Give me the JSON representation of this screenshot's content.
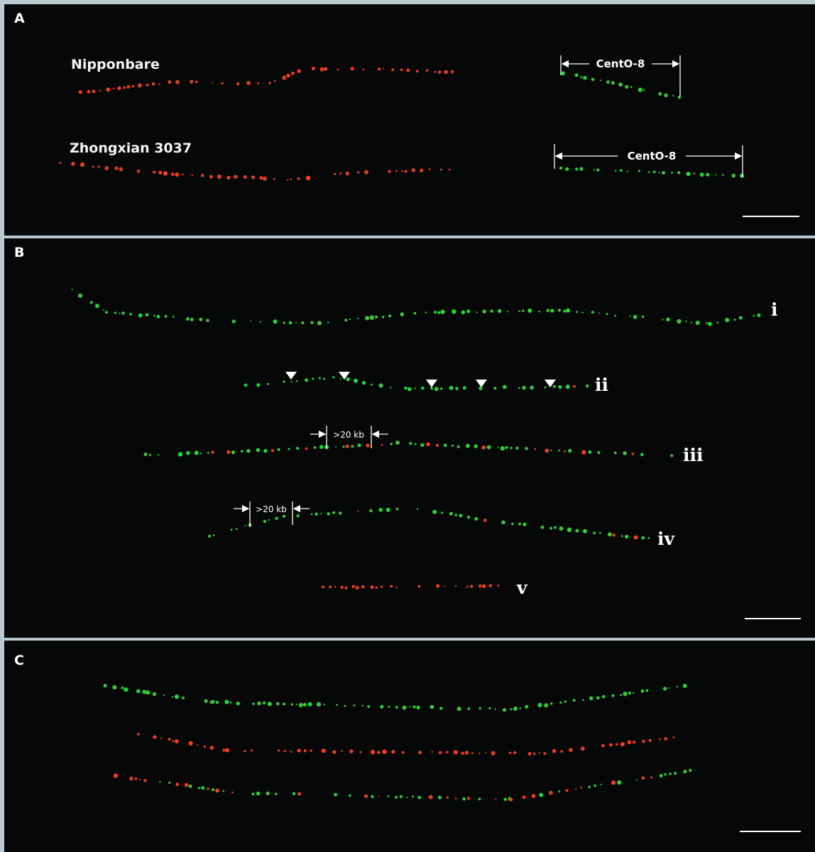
{
  "panels": [
    {
      "label": "A",
      "fibers": [
        {
          "label": "Nipponbare",
          "region": "CentO-8"
        },
        {
          "label": "Zhongxian 3037",
          "region": "CentO-8"
        }
      ]
    },
    {
      "label": "B",
      "fibers": [
        {
          "label": "i"
        },
        {
          "label": "ii"
        },
        {
          "label": "iii",
          "gap": ">20 kb"
        },
        {
          "label": "iv",
          "gap": ">20 kb"
        },
        {
          "label": "v"
        }
      ]
    },
    {
      "label": "C"
    }
  ]
}
